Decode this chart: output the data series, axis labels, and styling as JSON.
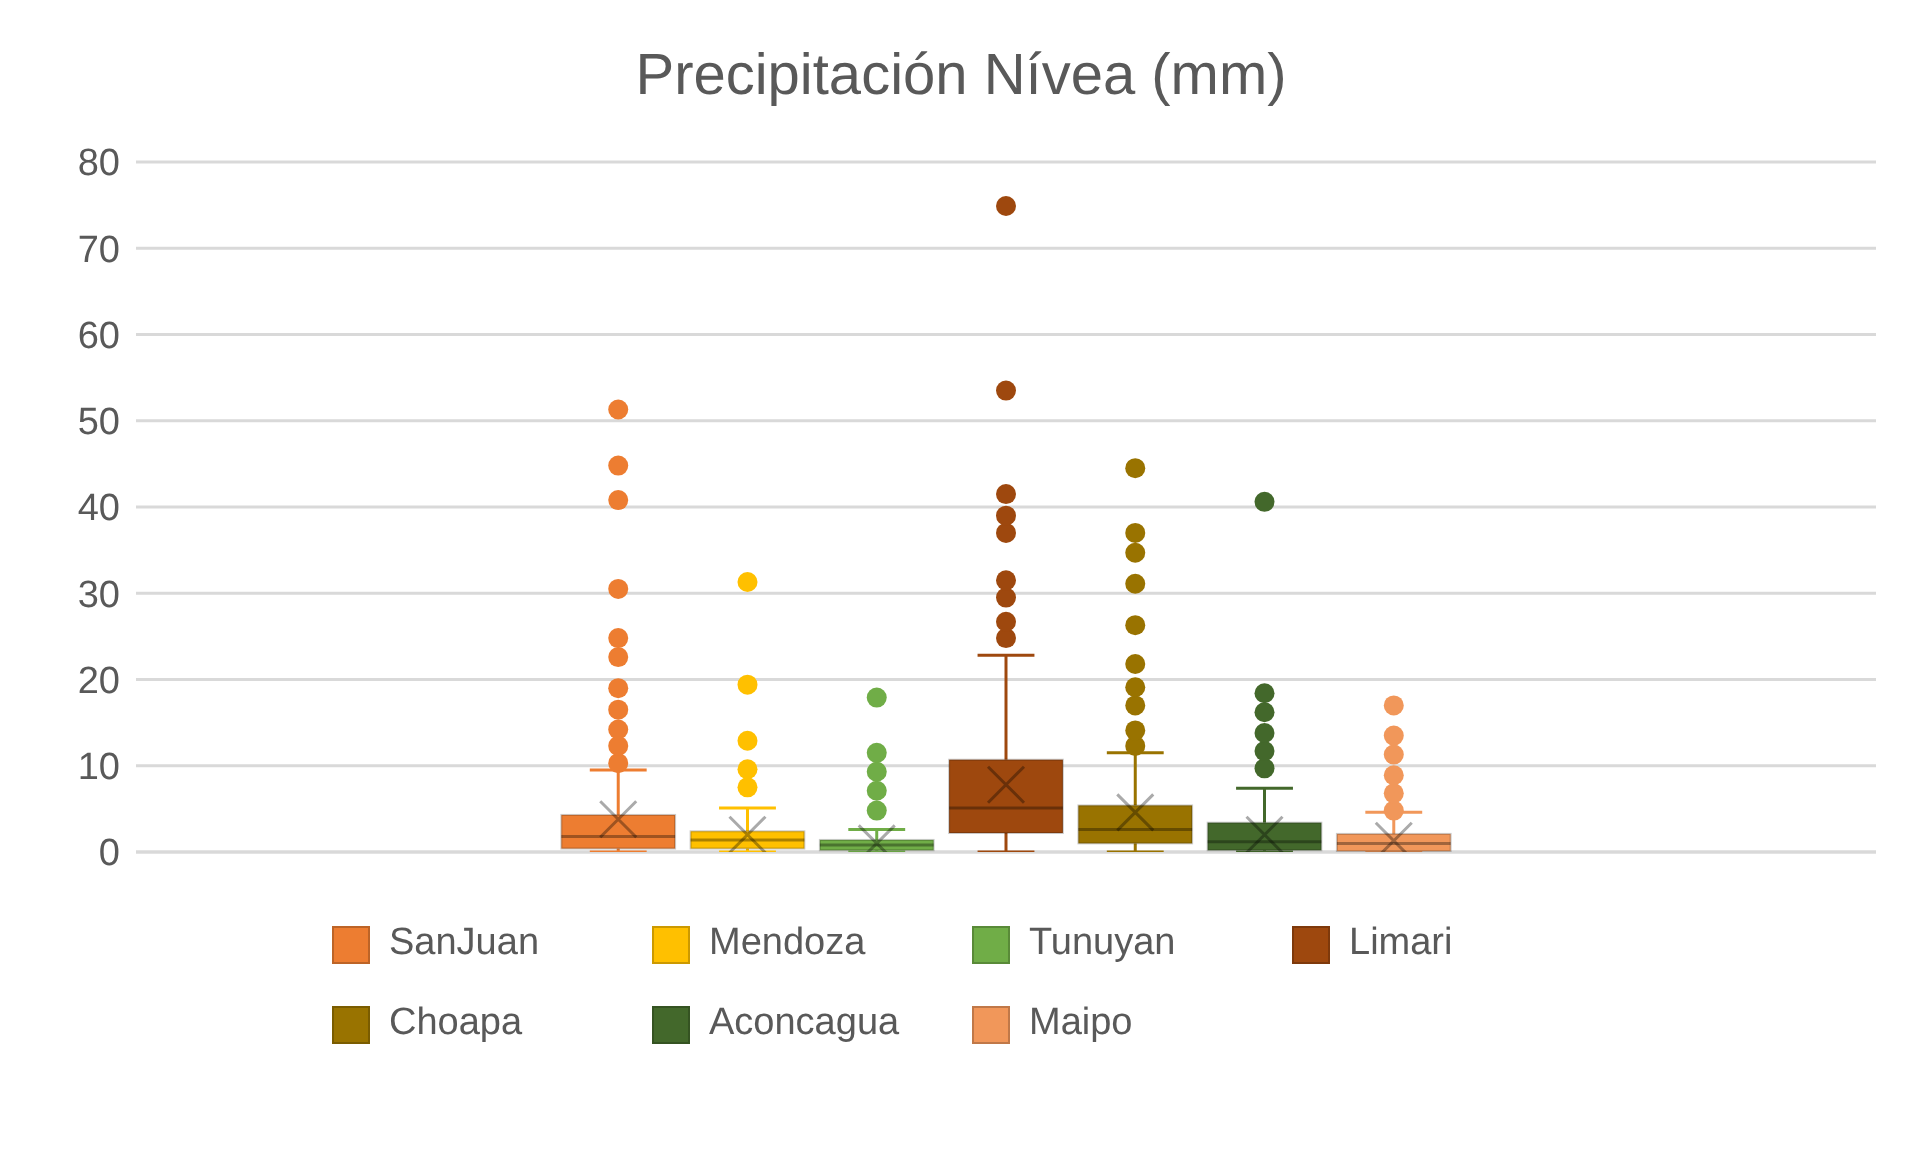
{
  "chart_data": {
    "type": "box",
    "title": "Precipitación Nívea (mm)",
    "categories": [
      null
    ],
    "ylim": [
      0,
      80
    ],
    "yticks": [
      0,
      10,
      20,
      30,
      40,
      50,
      60,
      70,
      80
    ],
    "grid": "y",
    "legend": "bottom",
    "marker": "circle",
    "series": [
      {
        "name": "SanJuan",
        "color": "#ed7d31",
        "boxes": [
          {
            "low": 0,
            "q1": 0.4,
            "median": 1.8,
            "q3": 4.3,
            "high": 9.5,
            "mean": 3.8,
            "outliers": [
              10.3,
              12.3,
              14.2,
              16.5,
              19.0,
              22.6,
              24.8,
              30.5,
              40.8,
              44.8,
              51.3
            ]
          }
        ]
      },
      {
        "name": "Mendoza",
        "color": "#ffc000",
        "boxes": [
          {
            "low": 0,
            "q1": 0.4,
            "median": 1.4,
            "q3": 2.4,
            "high": 5.1,
            "mean": 2.0,
            "outliers": [
              7.5,
              9.6,
              12.9,
              19.4,
              31.3
            ]
          }
        ]
      },
      {
        "name": "Tunuyan",
        "color": "#70ad47",
        "boxes": [
          {
            "low": 0,
            "q1": 0.2,
            "median": 0.8,
            "q3": 1.4,
            "high": 2.6,
            "mean": 1.0,
            "outliers": [
              4.8,
              7.1,
              9.3,
              11.5,
              17.9
            ]
          }
        ]
      },
      {
        "name": "Limari",
        "color": "#9e480e",
        "boxes": [
          {
            "low": 0,
            "q1": 2.2,
            "median": 5.1,
            "q3": 10.7,
            "high": 22.8,
            "mean": 7.8,
            "outliers": [
              24.8,
              26.7,
              29.5,
              31.5,
              37.0,
              39.0,
              41.5,
              53.5,
              74.9
            ]
          }
        ]
      },
      {
        "name": "Choapa",
        "color": "#997300",
        "boxes": [
          {
            "low": 0,
            "q1": 1.0,
            "median": 2.6,
            "q3": 5.4,
            "high": 11.5,
            "mean": 4.6,
            "outliers": [
              12.3,
              14.1,
              17.0,
              19.1,
              21.8,
              26.3,
              31.1,
              34.7,
              37.0,
              44.5
            ]
          }
        ]
      },
      {
        "name": "Aconcagua",
        "color": "#43682b",
        "boxes": [
          {
            "low": 0,
            "q1": 0.2,
            "median": 1.2,
            "q3": 3.4,
            "high": 7.4,
            "mean": 2.0,
            "outliers": [
              9.7,
              11.7,
              13.8,
              16.2,
              18.4,
              40.6
            ]
          }
        ]
      },
      {
        "name": "Maipo",
        "color": "#f1975a",
        "boxes": [
          {
            "low": 0,
            "q1": 0.1,
            "median": 1.0,
            "q3": 2.1,
            "high": 4.6,
            "mean": 1.3,
            "outliers": [
              4.8,
              6.8,
              8.9,
              11.3,
              13.5,
              17.0
            ]
          }
        ]
      }
    ]
  }
}
